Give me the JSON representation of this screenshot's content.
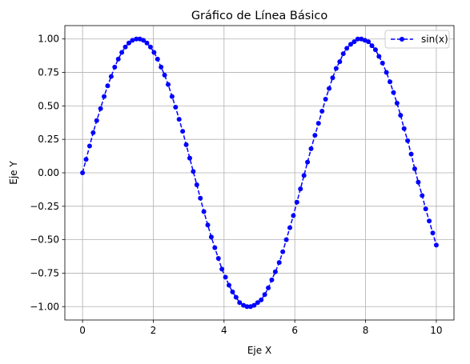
{
  "chart_data": {
    "type": "line",
    "title": "Gráfico de Línea Básico",
    "xlabel": "Eje X",
    "ylabel": "Eje Y",
    "xlim": [
      -0.5,
      10.5
    ],
    "ylim": [
      -1.1,
      1.1
    ],
    "xticks": [
      0,
      2,
      4,
      6,
      8,
      10
    ],
    "xtick_labels": [
      "0",
      "2",
      "4",
      "6",
      "8",
      "10"
    ],
    "yticks": [
      -1.0,
      -0.75,
      -0.5,
      -0.25,
      0.0,
      0.25,
      0.5,
      0.75,
      1.0
    ],
    "ytick_labels": [
      "−1.00",
      "−0.75",
      "−0.50",
      "−0.25",
      "0.00",
      "0.25",
      "0.50",
      "0.75",
      "1.00"
    ],
    "grid": true,
    "legend_position": "top-right",
    "series": [
      {
        "name": "sin(x)",
        "color": "#0000ff",
        "line_style": "dashed",
        "marker": "circle",
        "x": [
          0.0,
          0.1,
          0.2,
          0.3,
          0.4,
          0.51,
          0.61,
          0.71,
          0.81,
          0.91,
          1.01,
          1.11,
          1.21,
          1.31,
          1.41,
          1.52,
          1.62,
          1.72,
          1.82,
          1.92,
          2.02,
          2.12,
          2.22,
          2.32,
          2.42,
          2.53,
          2.63,
          2.73,
          2.83,
          2.93,
          3.03,
          3.13,
          3.23,
          3.33,
          3.43,
          3.54,
          3.64,
          3.74,
          3.84,
          3.94,
          4.04,
          4.14,
          4.24,
          4.34,
          4.44,
          4.55,
          4.65,
          4.75,
          4.85,
          4.95,
          5.05,
          5.15,
          5.25,
          5.35,
          5.45,
          5.56,
          5.66,
          5.76,
          5.86,
          5.96,
          6.06,
          6.16,
          6.26,
          6.36,
          6.46,
          6.57,
          6.67,
          6.77,
          6.87,
          6.97,
          7.07,
          7.17,
          7.27,
          7.37,
          7.47,
          7.58,
          7.68,
          7.78,
          7.88,
          7.98,
          8.08,
          8.18,
          8.28,
          8.38,
          8.48,
          8.59,
          8.69,
          8.79,
          8.89,
          8.99,
          9.09,
          9.19,
          9.29,
          9.39,
          9.49,
          9.6,
          9.7,
          9.8,
          9.9,
          10.0
        ],
        "y": [
          0.0,
          0.1,
          0.2,
          0.3,
          0.39,
          0.48,
          0.57,
          0.65,
          0.72,
          0.79,
          0.85,
          0.9,
          0.94,
          0.97,
          0.99,
          1.0,
          1.0,
          0.99,
          0.97,
          0.94,
          0.9,
          0.85,
          0.79,
          0.73,
          0.66,
          0.57,
          0.49,
          0.4,
          0.31,
          0.21,
          0.11,
          0.01,
          -0.09,
          -0.19,
          -0.29,
          -0.39,
          -0.48,
          -0.56,
          -0.64,
          -0.72,
          -0.78,
          -0.84,
          -0.89,
          -0.93,
          -0.97,
          -0.99,
          -1.0,
          -1.0,
          -0.99,
          -0.97,
          -0.95,
          -0.91,
          -0.86,
          -0.8,
          -0.74,
          -0.67,
          -0.59,
          -0.5,
          -0.41,
          -0.32,
          -0.22,
          -0.12,
          -0.02,
          0.08,
          0.18,
          0.28,
          0.37,
          0.46,
          0.55,
          0.63,
          0.71,
          0.78,
          0.83,
          0.89,
          0.93,
          0.96,
          0.98,
          1.0,
          1.0,
          0.99,
          0.98,
          0.95,
          0.92,
          0.87,
          0.82,
          0.75,
          0.68,
          0.6,
          0.52,
          0.43,
          0.33,
          0.24,
          0.14,
          0.03,
          -0.07,
          -0.17,
          -0.27,
          -0.36,
          -0.45,
          -0.54
        ]
      }
    ]
  }
}
